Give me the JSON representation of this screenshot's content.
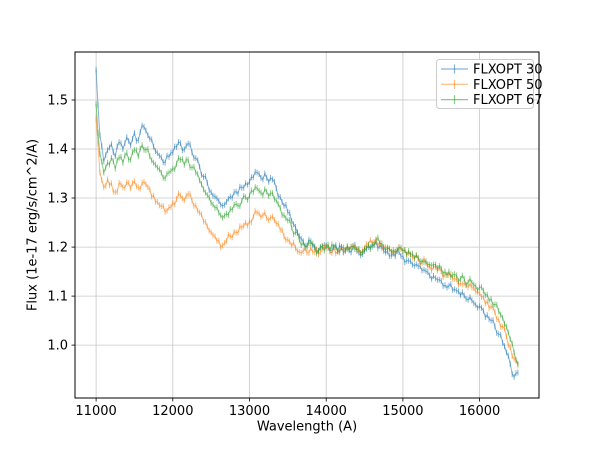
{
  "figure": {
    "background": "#ffffff"
  },
  "chart_data": {
    "type": "line",
    "style": "errorbar-spectrum",
    "title": "",
    "xlabel": "Wavelength (A)",
    "ylabel": "Flux (1e-17 erg/s/cm^2/A)",
    "xlim": [
      10725,
      16775
    ],
    "ylim": [
      0.892,
      1.598
    ],
    "xticks": [
      11000,
      12000,
      13000,
      14000,
      15000,
      16000
    ],
    "yticks": [
      1.0,
      1.1,
      1.2,
      1.3,
      1.4,
      1.5
    ],
    "grid": true,
    "grid_color": "#c8c8c8",
    "spine_color": "#000000",
    "legend_position": "upper right",
    "alpha": 0.55,
    "yerr": 0.006,
    "noise_amp": 0.009,
    "x_start": 11000,
    "x_step": 50,
    "series": [
      {
        "name": "FLXOPT 30",
        "color": "#1f77b4",
        "values": [
          1.562,
          1.428,
          1.375,
          1.398,
          1.41,
          1.385,
          1.414,
          1.4,
          1.424,
          1.408,
          1.433,
          1.418,
          1.448,
          1.438,
          1.421,
          1.405,
          1.392,
          1.383,
          1.372,
          1.384,
          1.393,
          1.404,
          1.412,
          1.399,
          1.411,
          1.393,
          1.381,
          1.364,
          1.343,
          1.331,
          1.312,
          1.303,
          1.294,
          1.284,
          1.292,
          1.303,
          1.312,
          1.309,
          1.321,
          1.33,
          1.333,
          1.342,
          1.352,
          1.341,
          1.35,
          1.333,
          1.338,
          1.32,
          1.302,
          1.284,
          1.271,
          1.253,
          1.241,
          1.222,
          1.212,
          1.203,
          1.212,
          1.201,
          1.192,
          1.202,
          1.203,
          1.193,
          1.201,
          1.191,
          1.199,
          1.192,
          1.193,
          1.2,
          1.192,
          1.183,
          1.192,
          1.2,
          1.201,
          1.21,
          1.202,
          1.192,
          1.191,
          1.182,
          1.181,
          1.19,
          1.181,
          1.172,
          1.171,
          1.162,
          1.161,
          1.152,
          1.151,
          1.142,
          1.141,
          1.133,
          1.131,
          1.122,
          1.121,
          1.112,
          1.111,
          1.102,
          1.101,
          1.092,
          1.091,
          1.082,
          1.079,
          1.07,
          1.061,
          1.05,
          1.038,
          1.022,
          1.005,
          0.985,
          0.962,
          0.935,
          0.944
        ]
      },
      {
        "name": "FLXOPT 50",
        "color": "#ff7f0e",
        "values": [
          1.462,
          1.352,
          1.322,
          1.338,
          1.33,
          1.312,
          1.331,
          1.322,
          1.332,
          1.32,
          1.334,
          1.322,
          1.331,
          1.328,
          1.318,
          1.305,
          1.292,
          1.283,
          1.272,
          1.281,
          1.29,
          1.298,
          1.305,
          1.295,
          1.308,
          1.295,
          1.285,
          1.27,
          1.252,
          1.242,
          1.23,
          1.222,
          1.213,
          1.203,
          1.212,
          1.222,
          1.231,
          1.229,
          1.24,
          1.25,
          1.253,
          1.262,
          1.27,
          1.261,
          1.27,
          1.255,
          1.262,
          1.248,
          1.235,
          1.222,
          1.215,
          1.203,
          1.198,
          1.19,
          1.192,
          1.188,
          1.198,
          1.19,
          1.185,
          1.196,
          1.199,
          1.19,
          1.199,
          1.191,
          1.2,
          1.194,
          1.196,
          1.203,
          1.196,
          1.188,
          1.198,
          1.206,
          1.208,
          1.216,
          1.209,
          1.2,
          1.199,
          1.191,
          1.191,
          1.2,
          1.192,
          1.184,
          1.184,
          1.176,
          1.176,
          1.168,
          1.168,
          1.16,
          1.16,
          1.152,
          1.151,
          1.143,
          1.143,
          1.135,
          1.134,
          1.126,
          1.126,
          1.118,
          1.117,
          1.109,
          1.106,
          1.098,
          1.089,
          1.079,
          1.067,
          1.052,
          1.038,
          1.018,
          0.996,
          0.972,
          0.958
        ]
      },
      {
        "name": "FLXOPT 67",
        "color": "#2ca02c",
        "values": [
          1.492,
          1.39,
          1.352,
          1.372,
          1.382,
          1.36,
          1.382,
          1.372,
          1.392,
          1.378,
          1.398,
          1.385,
          1.408,
          1.398,
          1.385,
          1.372,
          1.362,
          1.352,
          1.34,
          1.352,
          1.36,
          1.37,
          1.378,
          1.368,
          1.378,
          1.362,
          1.352,
          1.336,
          1.318,
          1.306,
          1.29,
          1.28,
          1.27,
          1.26,
          1.268,
          1.278,
          1.286,
          1.284,
          1.294,
          1.302,
          1.305,
          1.312,
          1.32,
          1.311,
          1.318,
          1.304,
          1.31,
          1.295,
          1.28,
          1.265,
          1.254,
          1.24,
          1.23,
          1.215,
          1.208,
          1.2,
          1.208,
          1.199,
          1.192,
          1.201,
          1.202,
          1.193,
          1.2,
          1.192,
          1.2,
          1.194,
          1.195,
          1.202,
          1.195,
          1.187,
          1.196,
          1.204,
          1.206,
          1.214,
          1.207,
          1.199,
          1.198,
          1.19,
          1.19,
          1.199,
          1.192,
          1.185,
          1.185,
          1.178,
          1.178,
          1.171,
          1.171,
          1.164,
          1.164,
          1.157,
          1.157,
          1.15,
          1.15,
          1.143,
          1.142,
          1.135,
          1.135,
          1.128,
          1.127,
          1.12,
          1.118,
          1.111,
          1.103,
          1.094,
          1.083,
          1.069,
          1.056,
          1.037,
          1.012,
          0.985,
          0.962
        ]
      }
    ],
    "legend": {
      "items": [
        {
          "label": "FLXOPT 30"
        },
        {
          "label": "FLXOPT 50"
        },
        {
          "label": "FLXOPT 67"
        }
      ]
    }
  }
}
